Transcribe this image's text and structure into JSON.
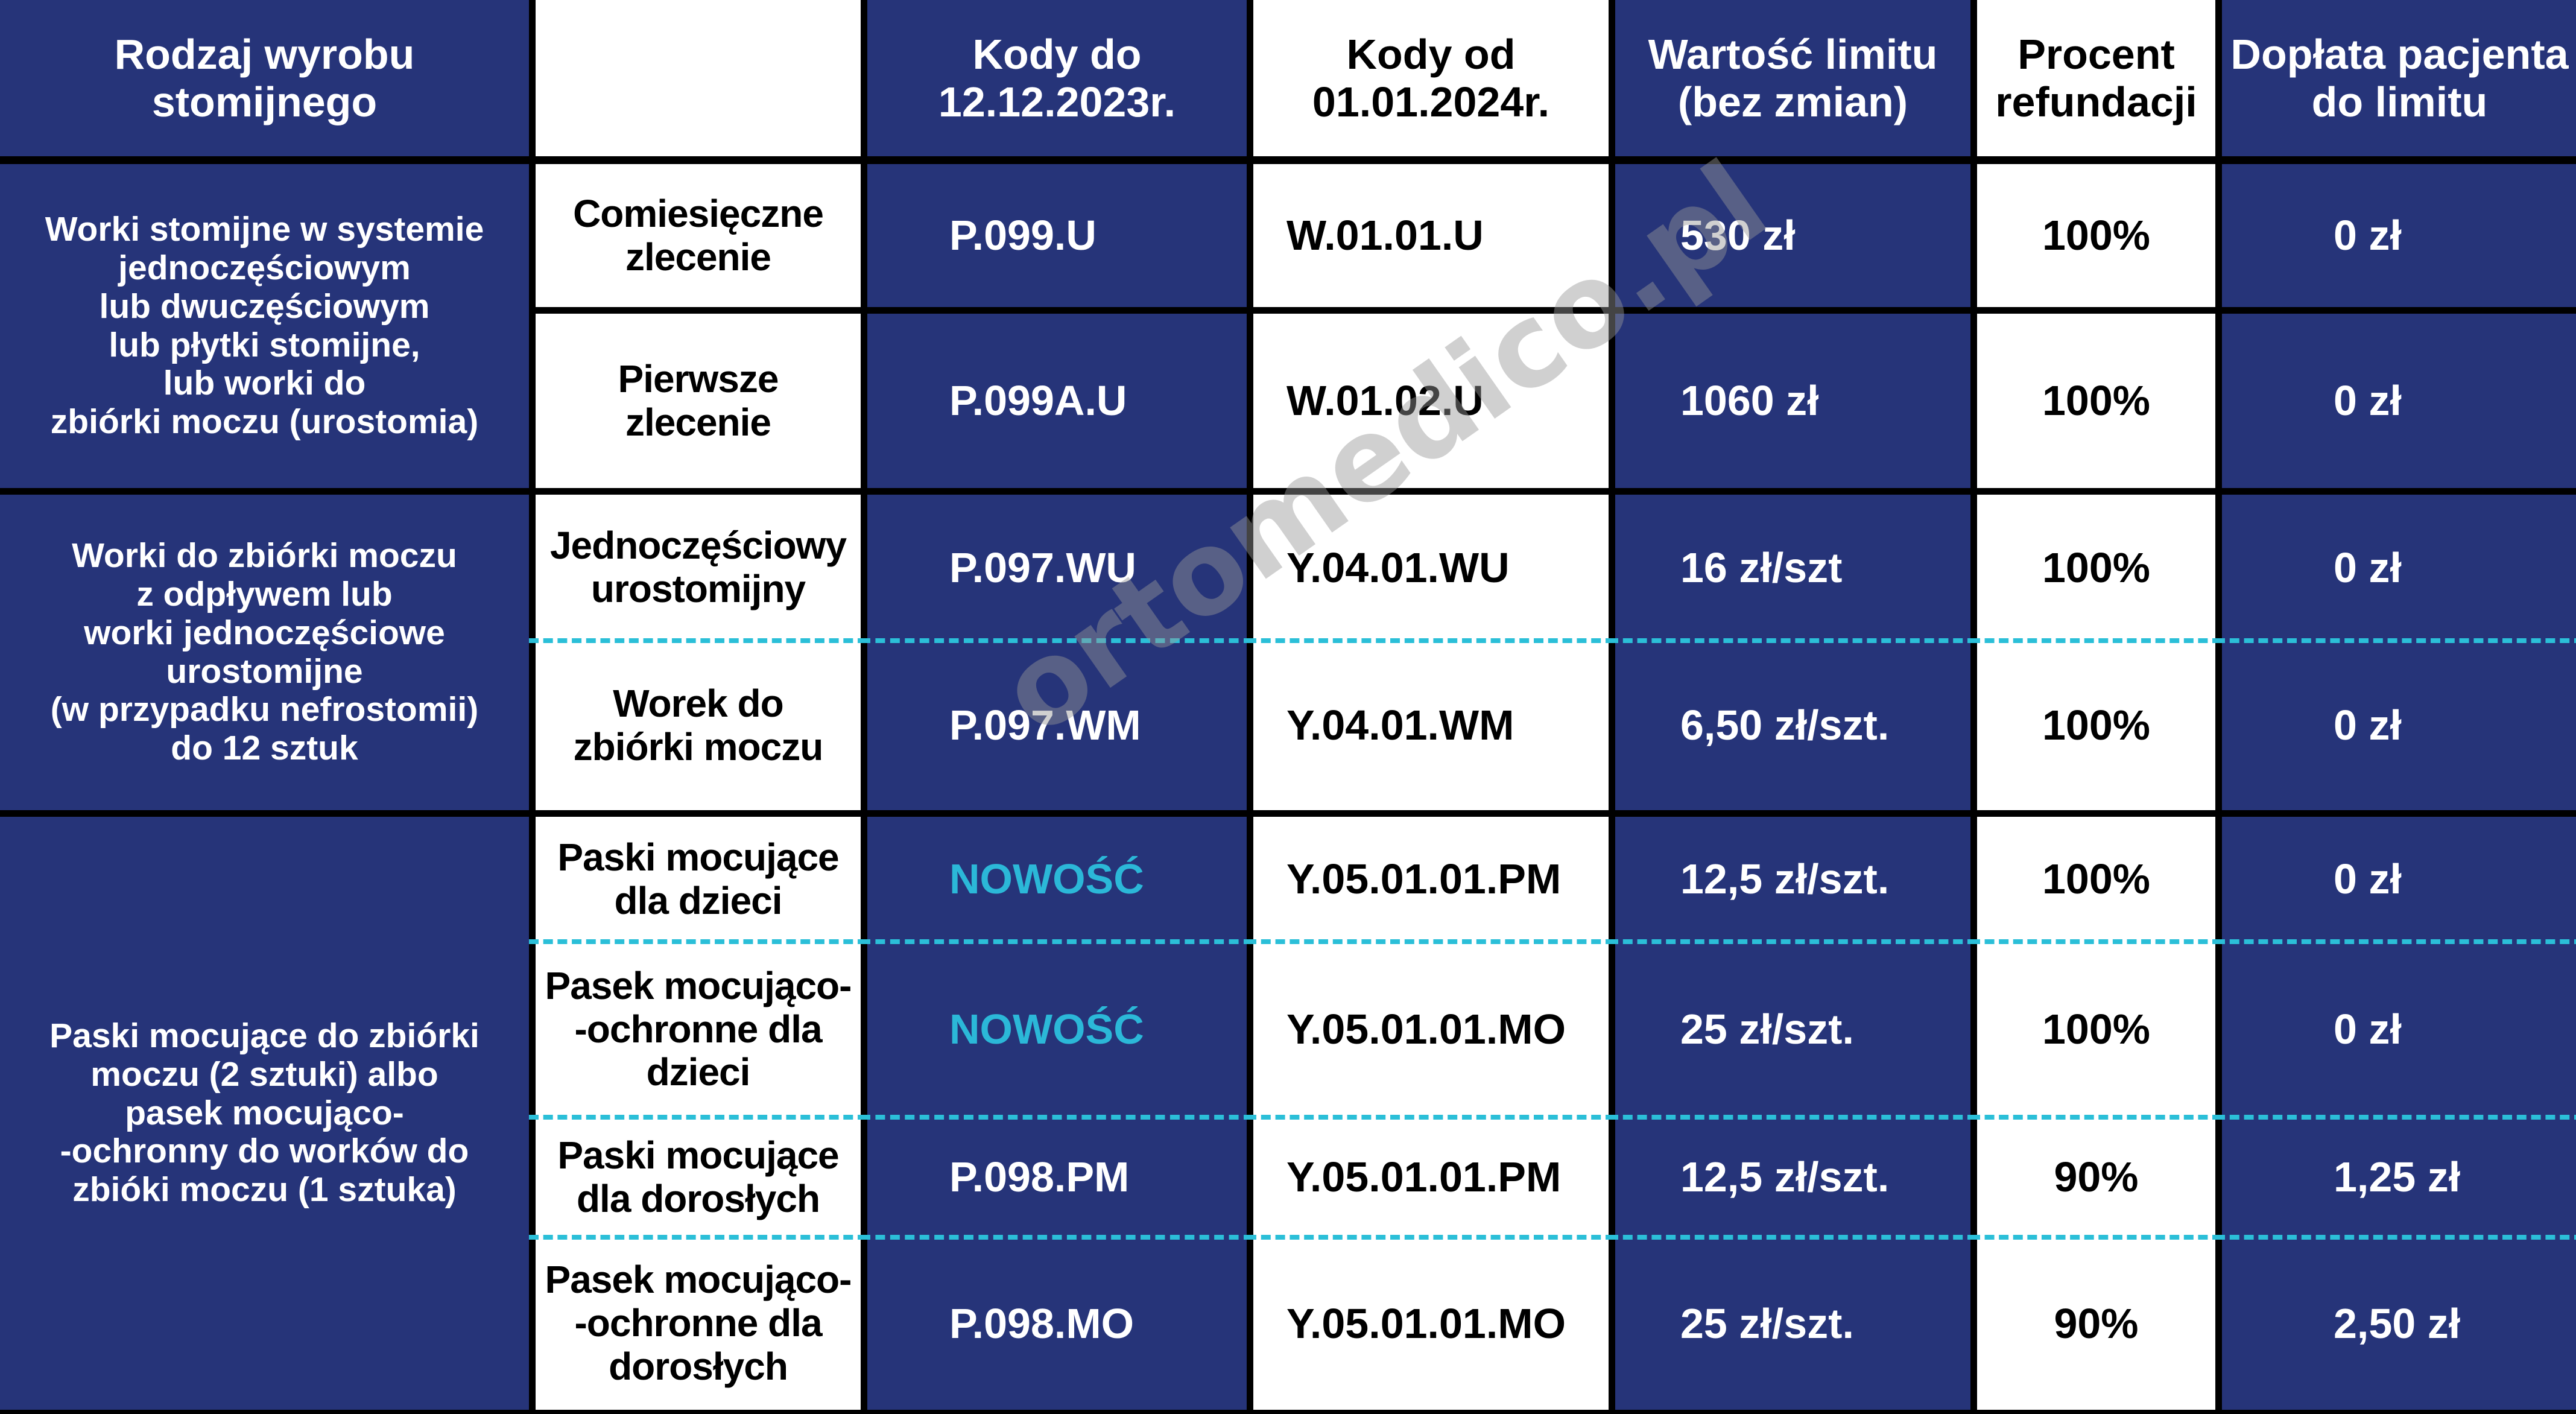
{
  "headers": [
    "Rodzaj wyrobu\nstomijnego",
    "",
    "Kody do\n12.12.2023r.",
    "Kody od\n01.01.2024r.",
    "Wartość limitu\n(bez zmian)",
    "Procent\nrefundacji",
    "Dopłata pacjenta\ndo limitu"
  ],
  "groups": [
    {
      "label": "Worki stomijne w systemie\njednoczęściowym\nlub dwuczęściowym\nlub płytki stomijne,\nlub worki do\nzbiórki moczu (urostomia)"
    },
    {
      "label": "Worki do zbiórki moczu\nz odpływem lub\nworki jednoczęściowe\nurostomijne\n(w przypadku nefrostomii)\ndo 12 sztuk"
    },
    {
      "label": "Paski mocujące do zbiórki\nmoczu (2 sztuki) albo\npasek mocująco-\n-ochronny do worków do\nzbióki moczu (1 sztuka)"
    }
  ],
  "rows": [
    {
      "type": "Comiesięczne\nzlecenie",
      "old_code": "P.099.U",
      "new_code": "W.01.01.U",
      "limit": "530 zł",
      "refund": "100%",
      "copay": "0 zł"
    },
    {
      "type": "Pierwsze\nzlecenie",
      "old_code": "P.099A.U",
      "new_code": "W.01.02.U",
      "limit": "1060 zł",
      "refund": "100%",
      "copay": "0 zł"
    },
    {
      "type": "Jednoczęściowy\nurostomijny",
      "old_code": "P.097.WU",
      "new_code": "Y.04.01.WU",
      "limit": "16 zł/szt",
      "refund": "100%",
      "copay": "0 zł"
    },
    {
      "type": "Worek do\nzbiórki moczu",
      "old_code": "P.097.WM",
      "new_code": "Y.04.01.WM",
      "limit": "6,50 zł/szt.",
      "refund": "100%",
      "copay": "0 zł"
    },
    {
      "type": "Paski mocujące\ndla dzieci",
      "old_code": "NOWOŚĆ",
      "new_code": "Y.05.01.01.PM",
      "limit": "12,5 zł/szt.",
      "refund": "100%",
      "copay": "0 zł"
    },
    {
      "type": "Pasek mocująco-\n-ochronne dla\ndzieci",
      "old_code": "NOWOŚĆ",
      "new_code": "Y.05.01.01.MO",
      "limit": "25 zł/szt.",
      "refund": "100%",
      "copay": "0 zł"
    },
    {
      "type": "Paski mocujące\ndla dorosłych",
      "old_code": "P.098.PM",
      "new_code": "Y.05.01.01.PM",
      "limit": "12,5 zł/szt.",
      "refund": "90%",
      "copay": "1,25 zł"
    },
    {
      "type": "Pasek mocująco-\n-ochronne dla\ndorosłych",
      "old_code": "P.098.MO",
      "new_code": "Y.05.01.01.MO",
      "limit": "25 zł/szt.",
      "refund": "90%",
      "copay": "2,50 zł"
    }
  ],
  "watermark": "ortomedico.pl",
  "colors": {
    "navy": "#263479",
    "accent": "#2bb8d8",
    "dashed_line": "#2bbfd8"
  }
}
